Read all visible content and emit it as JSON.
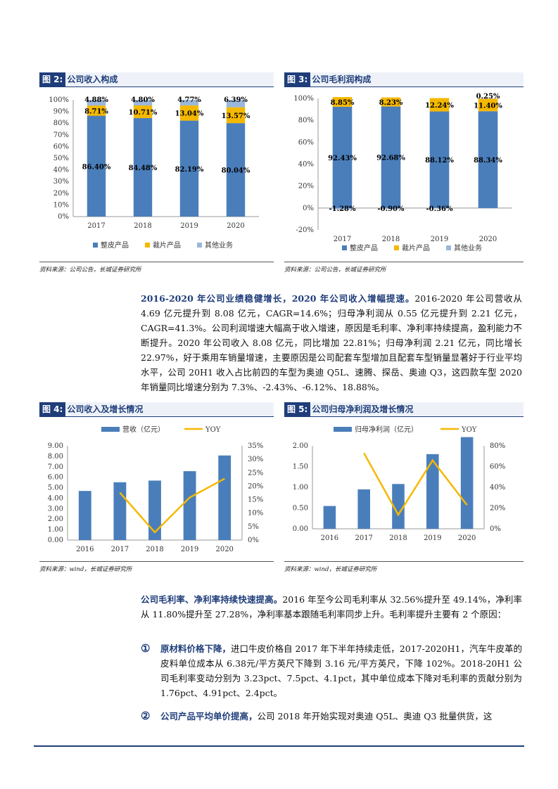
{
  "figures": {
    "fig2": {
      "label": "图 2:",
      "title": "公司收入构成",
      "source": "资料来源：公司公告，长城证券研究所",
      "legend": [
        "整皮产品",
        "裁片产品",
        "其他业务"
      ],
      "yticks": [
        "100%",
        "90%",
        "80%",
        "70%",
        "60%",
        "50%",
        "40%",
        "30%",
        "20%",
        "10%",
        "0%"
      ]
    },
    "fig3": {
      "label": "图 3:",
      "title": "公司毛利润构成",
      "source": "资料来源：公司公告，长城证券研究所",
      "legend": [
        "整皮产品",
        "裁片产品",
        "其他业务"
      ],
      "yticks": [
        "100%",
        "80%",
        "60%",
        "40%",
        "20%",
        "0%",
        "-20%"
      ]
    },
    "fig4": {
      "label": "图 4:",
      "title": "公司收入及增长情况",
      "source": "资料来源：wind，长城证券研究所",
      "legend": [
        "营收（亿元）",
        "YOY"
      ],
      "yticks_left": [
        "9.00",
        "8.00",
        "7.00",
        "6.00",
        "5.00",
        "4.00",
        "3.00",
        "2.00",
        "1.00",
        "0.00"
      ],
      "yticks_right": [
        "35%",
        "30%",
        "25%",
        "20%",
        "15%",
        "10%",
        "5%",
        "0%"
      ]
    },
    "fig5": {
      "label": "图 5:",
      "title": "公司归母净利润及增长情况",
      "source": "资料来源：wind，长城证券研究所",
      "legend": [
        "归母净利润（亿元）",
        "YOY"
      ],
      "yticks_left": [
        "2.00",
        "1.50",
        "1.00",
        "0.50",
        "0.00"
      ],
      "yticks_right": [
        "80%",
        "60%",
        "40%",
        "20%",
        "0%"
      ]
    }
  },
  "chart_data": [
    {
      "type": "bar",
      "stacked": true,
      "categories": [
        "2017",
        "2018",
        "2019",
        "2020"
      ],
      "series": [
        {
          "name": "整皮产品",
          "values": [
            86.4,
            84.48,
            82.19,
            80.04
          ],
          "labels": [
            "86.40%",
            "84.48%",
            "82.19%",
            "80.04%"
          ],
          "color": "#4a7ebb"
        },
        {
          "name": "裁片产品",
          "values": [
            8.71,
            10.71,
            13.04,
            13.57
          ],
          "labels": [
            "8.71%",
            "10.71%",
            "13.04%",
            "13.57%"
          ],
          "color": "#f5b800"
        },
        {
          "name": "其他业务",
          "values": [
            4.88,
            4.8,
            4.77,
            6.39
          ],
          "labels": [
            "4.88%",
            "4.80%",
            "4.77%",
            "6.39%"
          ],
          "color": "#9bb7d9"
        }
      ],
      "ylim": [
        0,
        100
      ]
    },
    {
      "type": "bar",
      "stacked": true,
      "categories": [
        "2017",
        "2018",
        "2019",
        "2020"
      ],
      "series": [
        {
          "name": "整皮产品",
          "values": [
            92.43,
            92.68,
            88.12,
            88.34
          ],
          "labels": [
            "92.43%",
            "92.68%",
            "88.12%",
            "88.34%"
          ],
          "color": "#4a7ebb"
        },
        {
          "name": "裁片产品",
          "values": [
            8.85,
            8.23,
            12.24,
            11.4
          ],
          "labels": [
            "8.85%",
            "8.23%",
            "12.24%",
            "11.40%"
          ],
          "color": "#f5b800"
        },
        {
          "name": "其他业务",
          "values": [
            -1.28,
            -0.9,
            -0.36,
            0.25
          ],
          "labels": [
            "-1.28%",
            "-0.90%",
            "-0.36%",
            "0.25%"
          ],
          "color": "#9bb7d9"
        }
      ],
      "ylim": [
        -20,
        100
      ]
    },
    {
      "type": "bar",
      "categories": [
        "2016",
        "2017",
        "2018",
        "2019",
        "2020"
      ],
      "series": [
        {
          "name": "营收（亿元）",
          "values": [
            4.69,
            5.52,
            5.68,
            6.58,
            8.08
          ],
          "color": "#4a7ebb"
        },
        {
          "name": "YOY",
          "type": "line",
          "values": [
            null,
            17.6,
            2.9,
            15.8,
            22.81
          ],
          "color": "#f5b800"
        }
      ],
      "ylim": [
        0,
        9
      ],
      "ylim_right": [
        0,
        35
      ]
    },
    {
      "type": "bar",
      "categories": [
        "2016",
        "2017",
        "2018",
        "2019",
        "2020"
      ],
      "series": [
        {
          "name": "归母净利润（亿元）",
          "values": [
            0.55,
            0.95,
            1.08,
            1.8,
            2.21
          ],
          "color": "#4a7ebb"
        },
        {
          "name": "YOY",
          "type": "line",
          "values": [
            null,
            73,
            13.5,
            66,
            22.97
          ],
          "color": "#f5b800"
        }
      ],
      "ylim": [
        0,
        2
      ],
      "ylim_right": [
        0,
        80
      ]
    }
  ],
  "text": {
    "p1_bold": "2016-2020 年公司业绩稳健增长，2020 年公司收入增幅提速。",
    "p1_body": "2016-2020 年公司营收从 4.69 亿元提升到 8.08 亿元，CAGR=14.6%；归母净利润从 0.55 亿元提升到 2.21 亿元，CAGR=41.3%。公司利润增速大幅高于收入增速，原因是毛利率、净利率持续提高，盈利能力不断提升。2020 年公司收入 8.08 亿元，同比增加 22.81%；归母净利润 2.21 亿元，同比增长 22.97%，好于乘用车销量增速，主要原因是公司配套车型增加且配套车型销量显著好于行业平均水平，公司 20H1 收入占比前四的车型为奥迪 Q5L、速腾、探岳、奥迪 Q3，这四款车型 2020 年销量同比增速分别为 7.3%、-2.43%、-6.12%、18.88%。",
    "p2_bold": "公司毛利率、净利率持续快速提高。",
    "p2_body": "2016 年至今公司毛利率从 32.56%提升至 49.14%，净利率从 11.80%提升至 27.28%，净利率基本跟随毛利率同步上升。毛利率提升主要有 2 个原因：",
    "b1_num": "①",
    "b1_bold": "原材料价格下降，",
    "b1_body": "进口牛皮价格自 2017 年下半年持续走低，2017-2020H1，汽车牛皮革的皮料单位成本从 6.38元/平方英尺下降到 3.16 元/平方英尺，下降 102%。2018-20H1 公司毛利率变动分别为 3.23pct、7.5pct、4.1pct，其中单位成本下降对毛利率的贡献分别为 1.76pct、4.91pct、2.4pct。",
    "b2_num": "②",
    "b2_bold": "公司产品平均单价提高，",
    "b2_body": "公司 2018 年开始实现对奥迪 Q5L、奥迪 Q3 批量供货，这"
  }
}
